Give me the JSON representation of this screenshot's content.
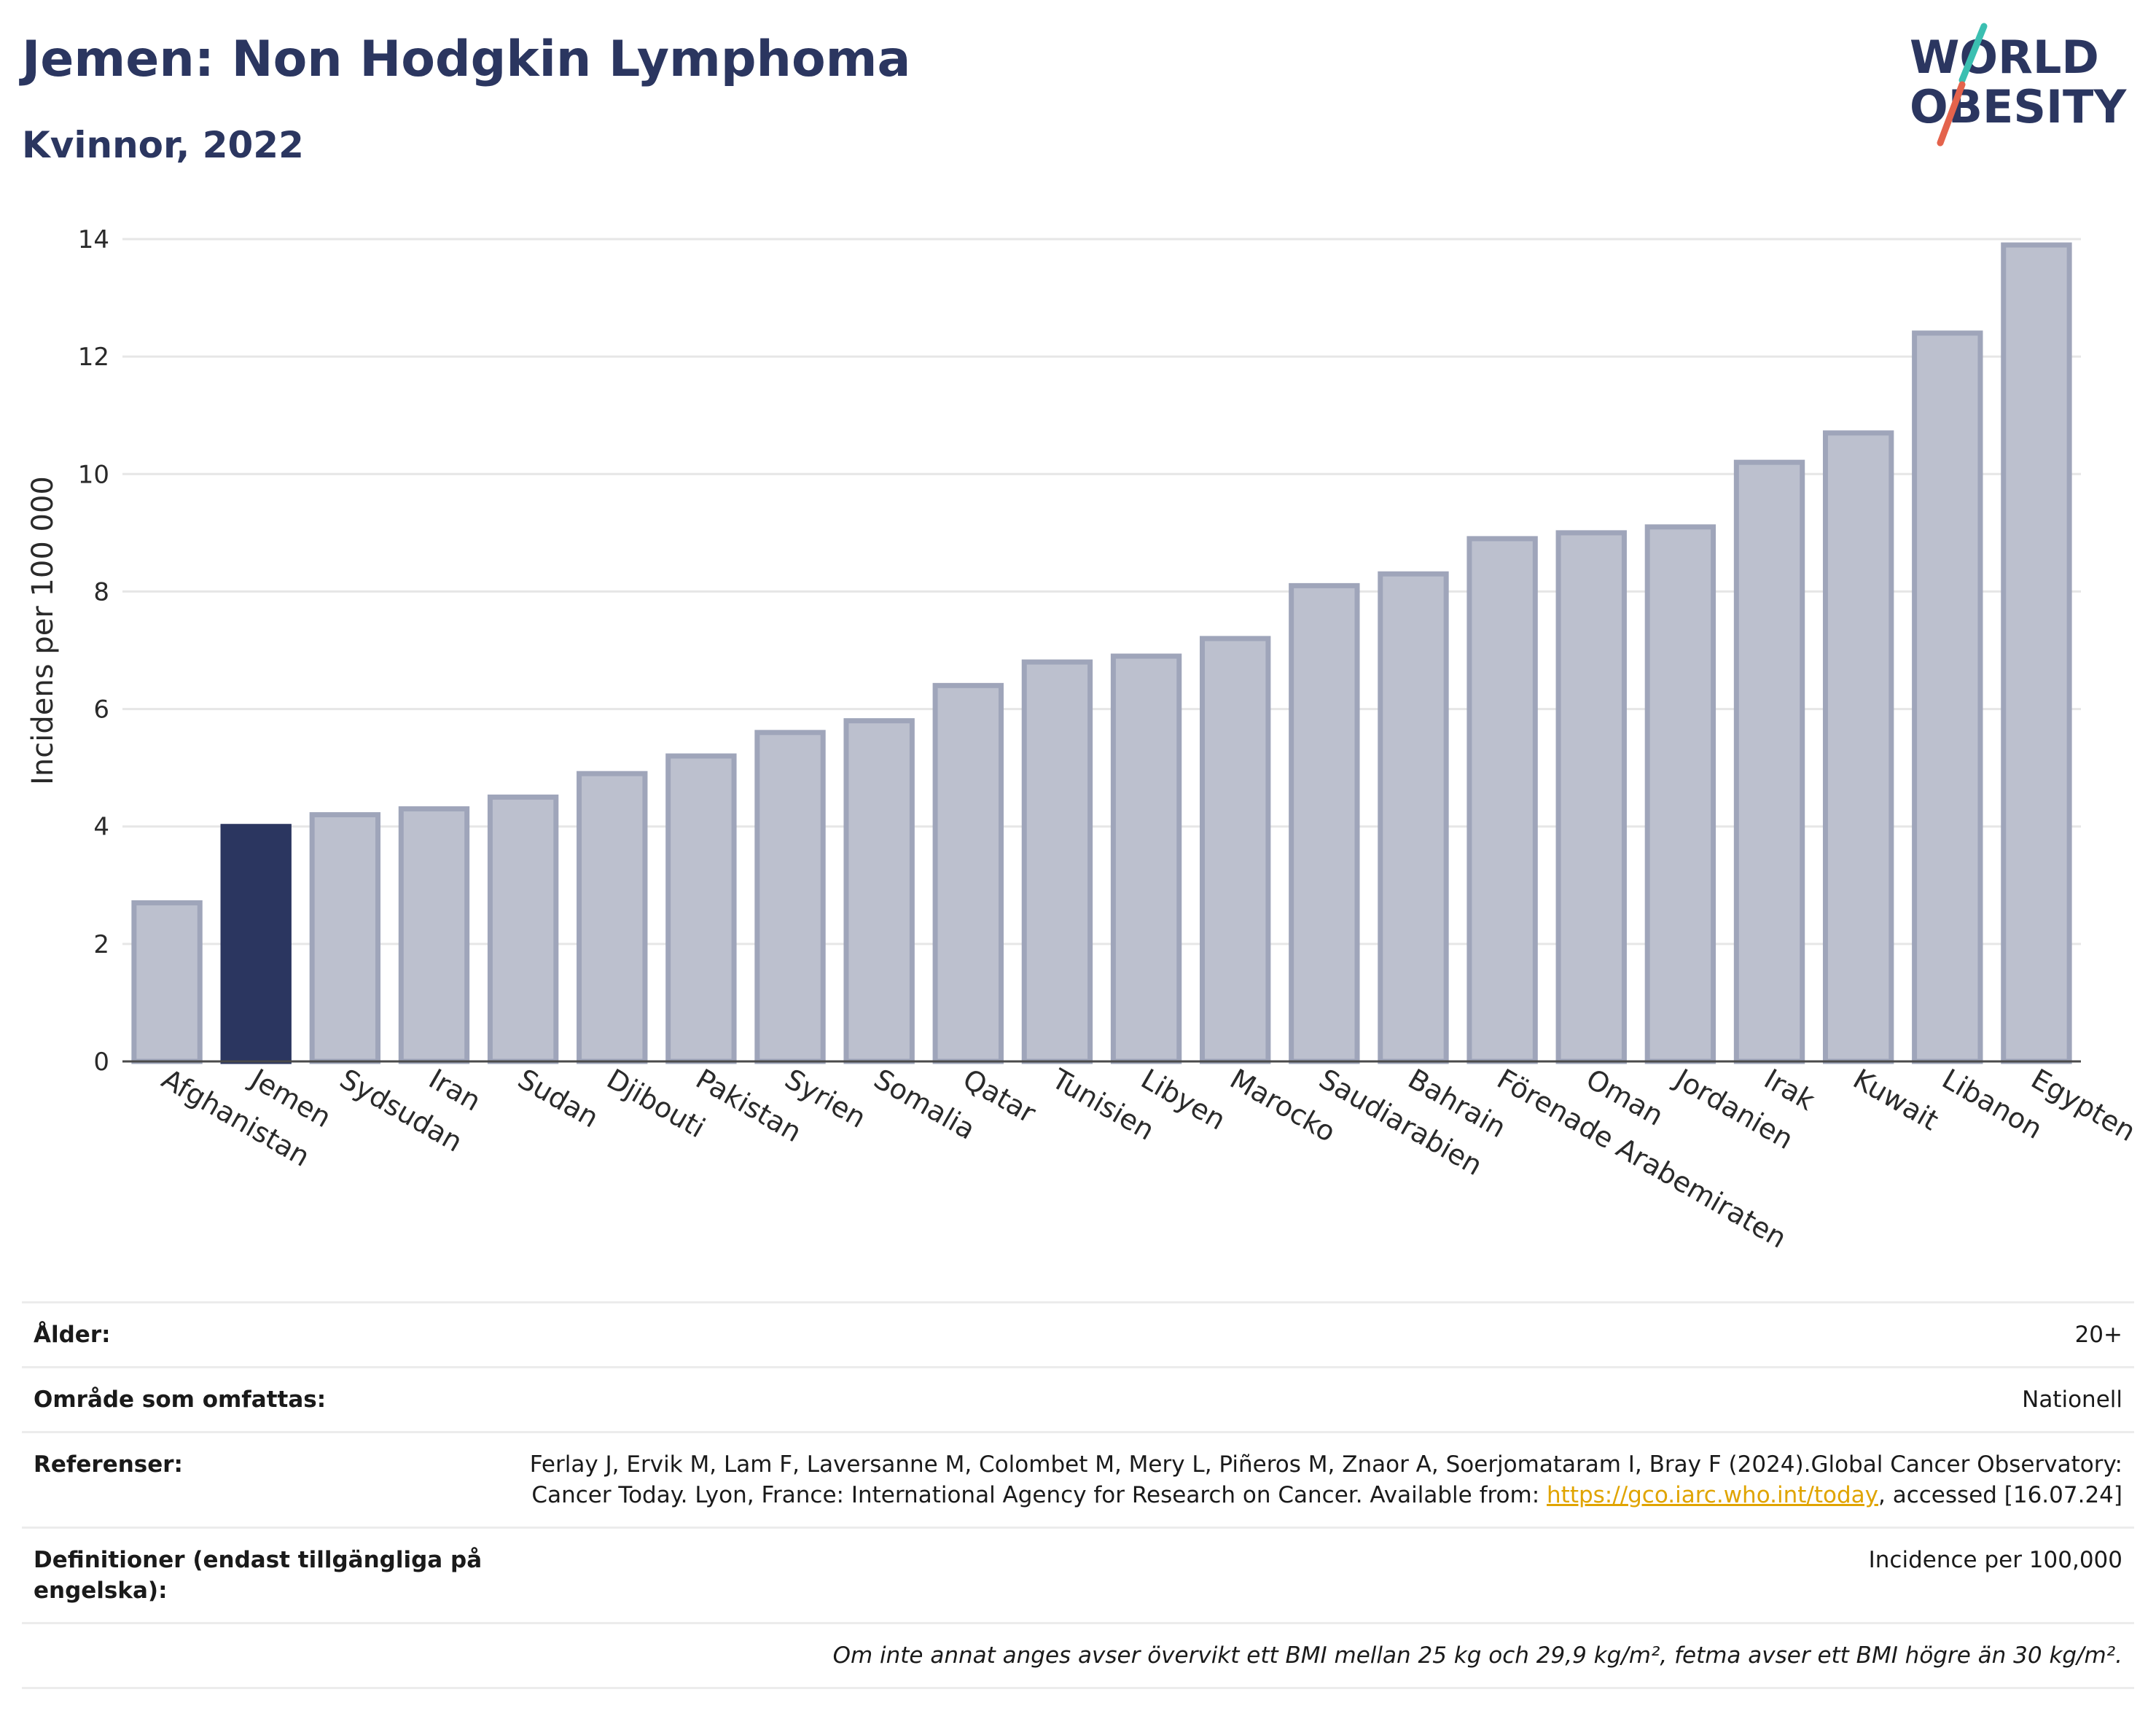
{
  "header": {
    "title": "Jemen: Non Hodgkin Lymphoma",
    "subtitle": "Kvinnor, 2022"
  },
  "logo": {
    "line1": "WORLD",
    "line2": "OBESITY",
    "colors": {
      "text": "#2b3660",
      "slash_teal": "#3bbfb1",
      "slash_red": "#e4634c"
    }
  },
  "chart_data": {
    "type": "bar",
    "ylabel": "Incidens per 100 000",
    "ylim": [
      0,
      14
    ],
    "yticks": [
      0,
      2,
      4,
      6,
      8,
      10,
      12,
      14
    ],
    "grid": true,
    "highlight": "Jemen",
    "colors": {
      "bar": "#bcc0ce",
      "bar_outline": "#9fa5ba",
      "highlight": "#2b3660",
      "grid": "#e6e6e6"
    },
    "categories": [
      "Afghanistan",
      "Jemen",
      "Sydsudan",
      "Iran",
      "Sudan",
      "Djibouti",
      "Pakistan",
      "Syrien",
      "Somalia",
      "Qatar",
      "Tunisien",
      "Libyen",
      "Marocko",
      "Saudiarabien",
      "Bahrain",
      "Förenade Arabemiraten",
      "Oman",
      "Jordanien",
      "Irak",
      "Kuwait",
      "Libanon",
      "Egypten"
    ],
    "values": [
      2.7,
      4.0,
      4.2,
      4.3,
      4.5,
      4.9,
      5.2,
      5.6,
      5.8,
      6.4,
      6.8,
      6.9,
      7.2,
      8.1,
      8.3,
      8.9,
      9.0,
      9.1,
      10.2,
      10.7,
      12.4,
      13.9
    ]
  },
  "info": {
    "age_label": "Ålder:",
    "age_value": "20+",
    "area_label": "Område som omfattas:",
    "area_value": "Nationell",
    "ref_label": "Referenser:",
    "ref_text_1": "Ferlay J, Ervik M, Lam F, Laversanne M, Colombet M, Mery L, Piñeros M, Znaor A, Soerjomataram I, Bray F (2024).Global Cancer Observatory: Cancer Today. Lyon, France: International Agency for Research on Cancer. Available from: ",
    "ref_link": "https://gco.iarc.who.int/today",
    "ref_text_2": ", accessed [16.07.24]",
    "def_label": "Definitioner (endast tillgängliga på engelska):",
    "def_value": "Incidence per 100,000",
    "note": "Om inte annat anges avser övervikt ett BMI mellan 25 kg och 29,9 kg/m², fetma avser ett BMI högre än 30 kg/m²."
  }
}
